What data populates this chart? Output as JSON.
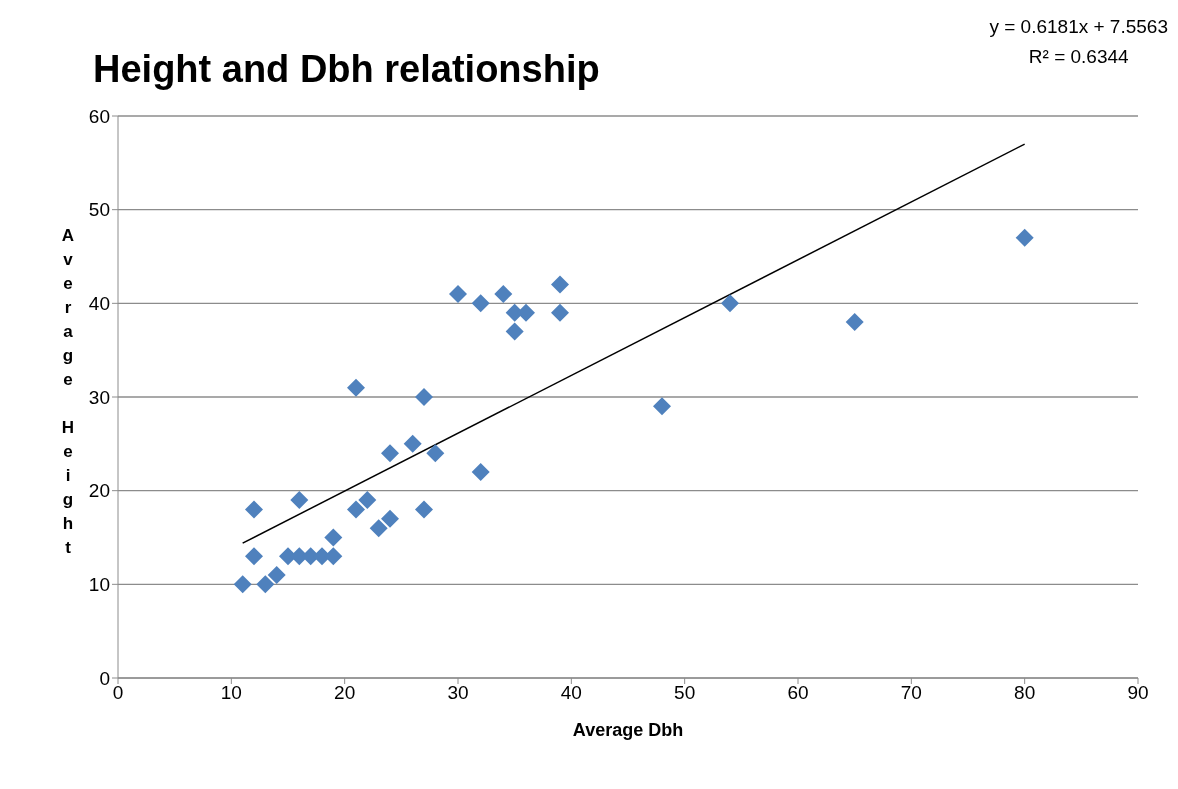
{
  "chart_data": {
    "type": "scatter",
    "title": "Height and Dbh relationship",
    "xlabel": "Average Dbh",
    "ylabel": "Average Height",
    "annotations": [
      "y = 0.6181x + 7.5563",
      "R² = 0.6344"
    ],
    "xlim": [
      0,
      90
    ],
    "xticks": [
      0,
      10,
      20,
      30,
      40,
      50,
      60,
      70,
      80,
      90
    ],
    "ylim": [
      0,
      60
    ],
    "yticks": [
      0,
      10,
      20,
      30,
      40,
      50,
      60
    ],
    "grid": "y",
    "series": [
      {
        "marker": "diamond",
        "color": "#4f81bd",
        "x": [
          11,
          12,
          12,
          13,
          14,
          15,
          16,
          16,
          17,
          18,
          19,
          19,
          21,
          21,
          22,
          23,
          24,
          24,
          26,
          27,
          27,
          28,
          30,
          32,
          32,
          34,
          35,
          35,
          36,
          39,
          39,
          48,
          54,
          65,
          80
        ],
        "values": [
          10,
          18,
          13,
          10,
          11,
          13,
          13,
          19,
          13,
          13,
          13,
          15,
          31,
          18,
          19,
          16,
          17,
          24,
          25,
          30,
          18,
          24,
          41,
          40,
          22,
          41,
          39,
          37,
          39,
          42,
          39,
          29,
          40,
          38,
          47
        ]
      },
      {
        "type": "line",
        "marker": "none",
        "color": "#000000",
        "x": [
          11,
          80
        ],
        "values": [
          14.4,
          57.0
        ]
      }
    ]
  }
}
